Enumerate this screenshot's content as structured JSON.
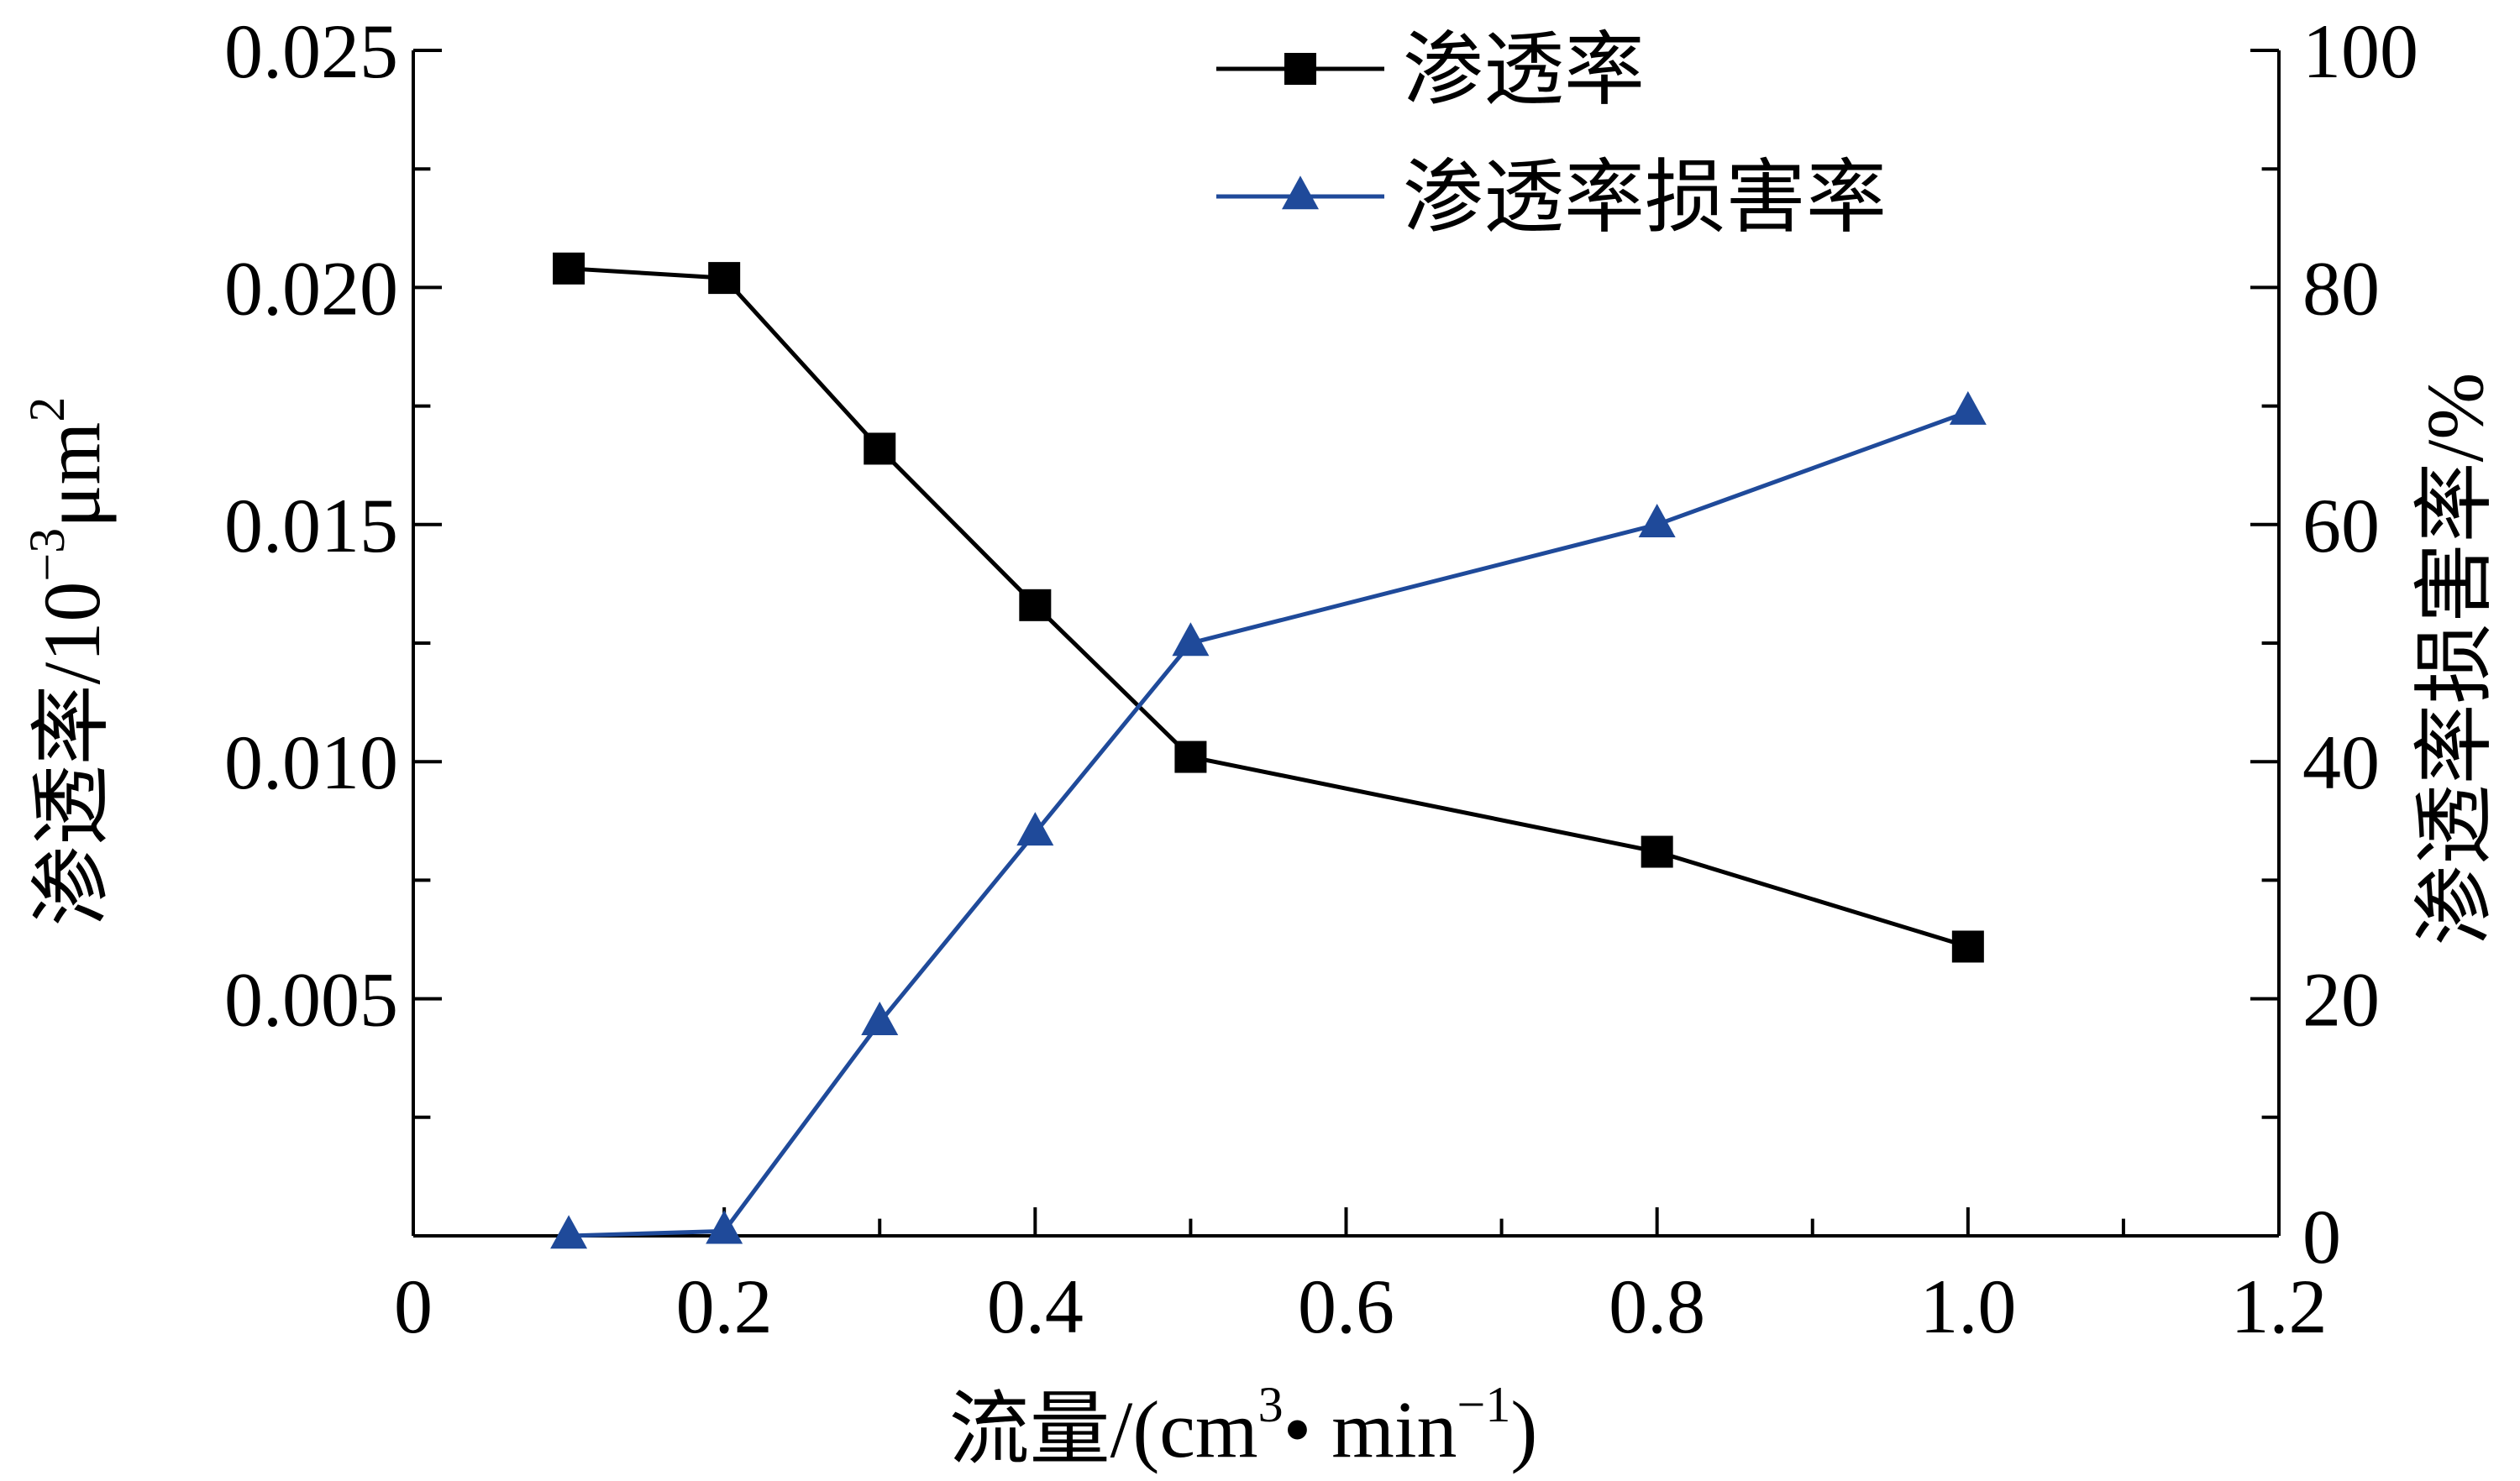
{
  "chart_data": {
    "type": "line",
    "xlabel": {
      "main": "流量/(cm",
      "sup1": "3",
      "mid": "• min",
      "sup2": "−1",
      "end": ")"
    },
    "ylabel": {
      "main": "渗透率/10",
      "sup1": "−3",
      "mid": "μm",
      "sup2": "2"
    },
    "y2label": "渗透率损害率/%",
    "xlim": [
      0,
      1.2
    ],
    "ylim": [
      0,
      0.025
    ],
    "y2lim": [
      0,
      100
    ],
    "x_ticks": [
      {
        "value": 0,
        "label": "0"
      },
      {
        "value": 0.2,
        "label": "0.2"
      },
      {
        "value": 0.4,
        "label": "0.4"
      },
      {
        "value": 0.6,
        "label": "0.6"
      },
      {
        "value": 0.8,
        "label": "0.8"
      },
      {
        "value": 1.0,
        "label": "1.0"
      },
      {
        "value": 1.2,
        "label": "1.2"
      }
    ],
    "y_ticks": [
      {
        "value": 0.005,
        "label": "0.005"
      },
      {
        "value": 0.01,
        "label": "0.010"
      },
      {
        "value": 0.015,
        "label": "0.015"
      },
      {
        "value": 0.02,
        "label": "0.020"
      },
      {
        "value": 0.025,
        "label": "0.025"
      }
    ],
    "y2_ticks": [
      {
        "value": 0,
        "label": "0"
      },
      {
        "value": 20,
        "label": "20"
      },
      {
        "value": 40,
        "label": "40"
      },
      {
        "value": 60,
        "label": "60"
      },
      {
        "value": 80,
        "label": "80"
      },
      {
        "value": 100,
        "label": "100"
      }
    ],
    "grid": false,
    "legend_position": "top-center",
    "series": [
      {
        "name": "渗透率",
        "axis": "left",
        "marker": "square",
        "color": "#000000",
        "x": [
          0.1,
          0.2,
          0.3,
          0.4,
          0.5,
          0.8,
          1.0
        ],
        "y": [
          0.0204,
          0.0202,
          0.0166,
          0.0133,
          0.0101,
          0.0081,
          0.0061
        ]
      },
      {
        "name": "渗透率损害率",
        "axis": "right",
        "marker": "triangle",
        "color": "#1f4a9a",
        "x": [
          0.1,
          0.2,
          0.3,
          0.4,
          0.5,
          0.8,
          1.0
        ],
        "y": [
          0,
          0.4,
          18,
          34,
          50,
          60,
          69.5
        ]
      }
    ]
  }
}
